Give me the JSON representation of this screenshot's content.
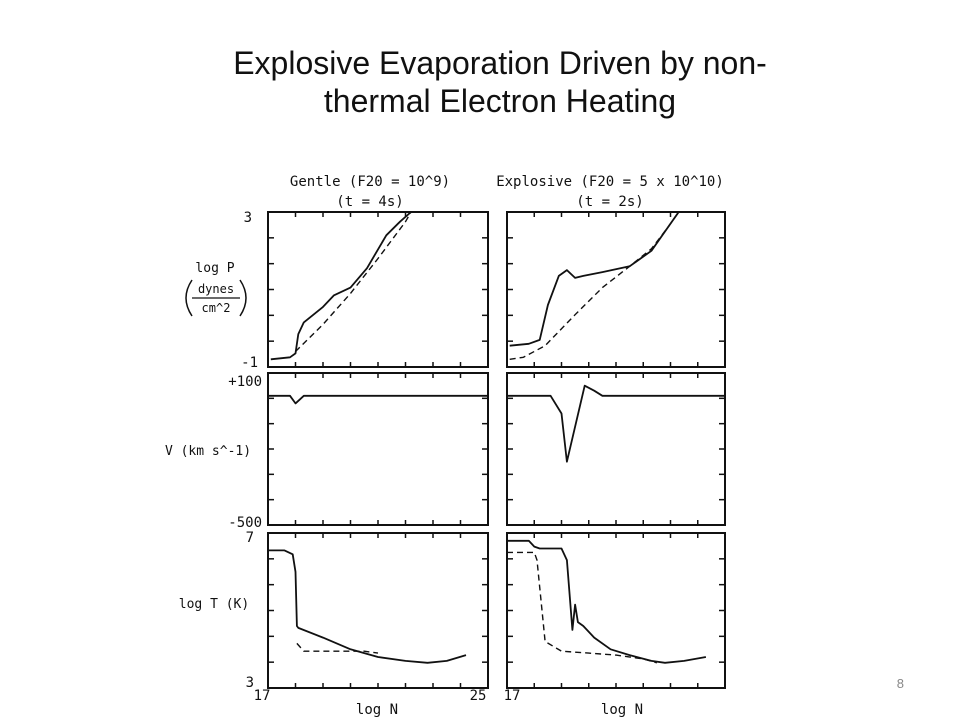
{
  "slide": {
    "title_line1": "Explosive Evaporation Driven by non-",
    "title_line2": "thermal Electron Heating",
    "page_number": "8"
  },
  "figure": {
    "columns": [
      {
        "heading": "Gentle (F20 = 10^9)",
        "subheading": "(t = 4s)"
      },
      {
        "heading": "Explosive (F20 = 5 x 10^10)",
        "subheading": "(t = 2s)"
      }
    ],
    "row_labels": {
      "pressure": "log P",
      "pressure_units_num": "dynes",
      "pressure_units_den": "cm^2",
      "velocity": "V (km s^-1)",
      "temperature": "log T (K)"
    },
    "x_axis_label": "log N",
    "tick_labels": {
      "p_top": "3",
      "p_bottom": "-1",
      "v_top": "+100",
      "v_bottom": "-500",
      "t_top": "7",
      "t_bottom": "3",
      "x_left_1": "17",
      "x_right_1": "25",
      "x_left_2": "17"
    }
  },
  "chart_data": [
    {
      "type": "line",
      "panel": "gentle-pressure",
      "xlabel": "log N",
      "ylabel": "log P",
      "xlim": [
        17,
        25
      ],
      "ylim": [
        -1,
        3
      ],
      "series": [
        {
          "style": "solid",
          "x": [
            17.1,
            17.8,
            18.0,
            18.1,
            18.3,
            19.0,
            19.4,
            20.0,
            20.6,
            21.3,
            21.8,
            22.2
          ],
          "y": [
            -0.8,
            -0.75,
            -0.65,
            -0.15,
            0.15,
            0.55,
            0.85,
            1.05,
            1.55,
            2.4,
            2.75,
            3.0
          ]
        },
        {
          "style": "dashed",
          "x": [
            18.0,
            19.0,
            20.0,
            21.0,
            22.0,
            22.2
          ],
          "y": [
            -0.6,
            0.1,
            0.9,
            1.8,
            2.75,
            3.0
          ]
        }
      ]
    },
    {
      "type": "line",
      "panel": "explosive-pressure",
      "xlabel": "log N",
      "ylabel": "log P",
      "xlim": [
        17,
        25
      ],
      "ylim": [
        -1,
        3
      ],
      "series": [
        {
          "style": "solid",
          "x": [
            17.1,
            17.8,
            18.2,
            18.5,
            18.9,
            19.2,
            19.5,
            19.8,
            20.5,
            21.5,
            22.3,
            22.9,
            23.3
          ],
          "y": [
            -0.45,
            -0.4,
            -0.3,
            0.6,
            1.35,
            1.5,
            1.3,
            1.35,
            1.45,
            1.6,
            2.0,
            2.6,
            3.0
          ]
        },
        {
          "style": "dashed",
          "x": [
            17.1,
            17.6,
            18.4,
            19.5,
            20.5,
            21.5,
            22.3,
            22.9,
            23.3
          ],
          "y": [
            -0.8,
            -0.75,
            -0.45,
            0.35,
            1.05,
            1.6,
            2.05,
            2.6,
            3.0
          ]
        }
      ]
    },
    {
      "type": "line",
      "panel": "gentle-velocity",
      "xlabel": "log N",
      "ylabel": "V (km s^-1)",
      "xlim": [
        17,
        25
      ],
      "ylim": [
        -500,
        100
      ],
      "series": [
        {
          "style": "solid",
          "x": [
            17.0,
            17.8,
            18.0,
            18.3,
            25.0
          ],
          "y": [
            10,
            10,
            -20,
            10,
            10
          ]
        }
      ]
    },
    {
      "type": "line",
      "panel": "explosive-velocity",
      "xlabel": "log N",
      "ylabel": "V (km s^-1)",
      "xlim": [
        17,
        25
      ],
      "ylim": [
        -500,
        100
      ],
      "series": [
        {
          "style": "solid",
          "x": [
            17.0,
            18.6,
            19.0,
            19.2,
            19.85,
            20.2,
            20.5,
            25.0
          ],
          "y": [
            10,
            10,
            -60,
            -250,
            50,
            30,
            10,
            10
          ]
        }
      ]
    },
    {
      "type": "line",
      "panel": "gentle-temperature",
      "xlabel": "log N",
      "ylabel": "log T (K)",
      "xlim": [
        17,
        25
      ],
      "ylim": [
        3,
        7
      ],
      "series": [
        {
          "style": "solid",
          "x": [
            17.0,
            17.6,
            17.9,
            18.0,
            18.05,
            18.1,
            19.0,
            20.0,
            21.0,
            22.0,
            22.8,
            23.5,
            24.2
          ],
          "y": [
            6.55,
            6.55,
            6.45,
            6.0,
            4.6,
            4.55,
            4.3,
            4.0,
            3.8,
            3.7,
            3.65,
            3.7,
            3.85
          ]
        },
        {
          "style": "dashed",
          "x": [
            18.05,
            18.3,
            19.5,
            20.5,
            21.0
          ],
          "y": [
            4.15,
            3.95,
            3.95,
            3.95,
            3.9
          ]
        }
      ]
    },
    {
      "type": "line",
      "panel": "explosive-temperature",
      "xlabel": "log N",
      "ylabel": "log T (K)",
      "xlim": [
        17,
        25
      ],
      "ylim": [
        3,
        7
      ],
      "series": [
        {
          "style": "solid",
          "x": [
            17.0,
            17.8,
            18.0,
            18.2,
            19.0,
            19.2,
            19.4,
            19.5,
            19.6,
            19.8,
            20.2,
            20.8,
            21.5,
            22.3,
            22.8,
            23.5,
            24.3
          ],
          "y": [
            6.8,
            6.8,
            6.65,
            6.6,
            6.6,
            6.3,
            4.5,
            5.15,
            4.7,
            4.6,
            4.3,
            4.0,
            3.85,
            3.7,
            3.65,
            3.7,
            3.8
          ]
        },
        {
          "style": "dashed",
          "x": [
            17.0,
            18.0,
            18.1,
            18.4,
            19.0,
            20.0,
            21.0,
            22.0,
            22.5
          ],
          "y": [
            6.5,
            6.5,
            6.3,
            4.2,
            3.95,
            3.9,
            3.85,
            3.75,
            3.65
          ]
        }
      ]
    }
  ]
}
